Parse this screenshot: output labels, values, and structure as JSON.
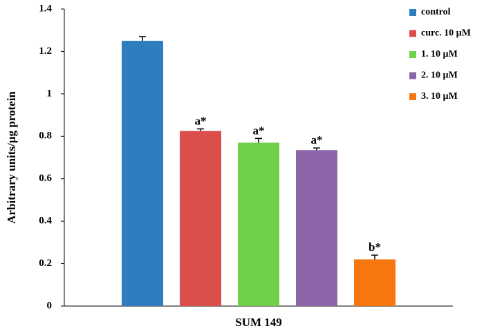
{
  "chart_data": {
    "type": "bar",
    "ylabel": "Arbitrary units/µg protein",
    "categories": [
      "SUM 149"
    ],
    "series": [
      {
        "name": "control",
        "color": "#2e7ebf",
        "values": [
          1.25
        ],
        "errors": [
          0.02
        ]
      },
      {
        "name": "curc. 10 µM",
        "color": "#dc4e4c",
        "values": [
          0.825
        ],
        "errors": [
          0.01
        ],
        "annotations": [
          "a*"
        ]
      },
      {
        "name": "1. 10 µM",
        "color": "#6fd14a",
        "values": [
          0.77
        ],
        "errors": [
          0.02
        ],
        "annotations": [
          "a*"
        ]
      },
      {
        "name": "2. 10 µM",
        "color": "#8c66a8",
        "values": [
          0.735
        ],
        "errors": [
          0.01
        ],
        "annotations": [
          "a*"
        ]
      },
      {
        "name": "3. 10 µM",
        "color": "#f7760d",
        "values": [
          0.22
        ],
        "errors": [
          0.02
        ],
        "annotations": [
          "b*"
        ]
      }
    ],
    "ylim": [
      0,
      1.4
    ],
    "yticks": [
      0,
      0.2,
      0.4,
      0.6,
      0.8,
      1,
      1.2,
      1.4
    ],
    "legend": "top-right",
    "grid": false
  }
}
